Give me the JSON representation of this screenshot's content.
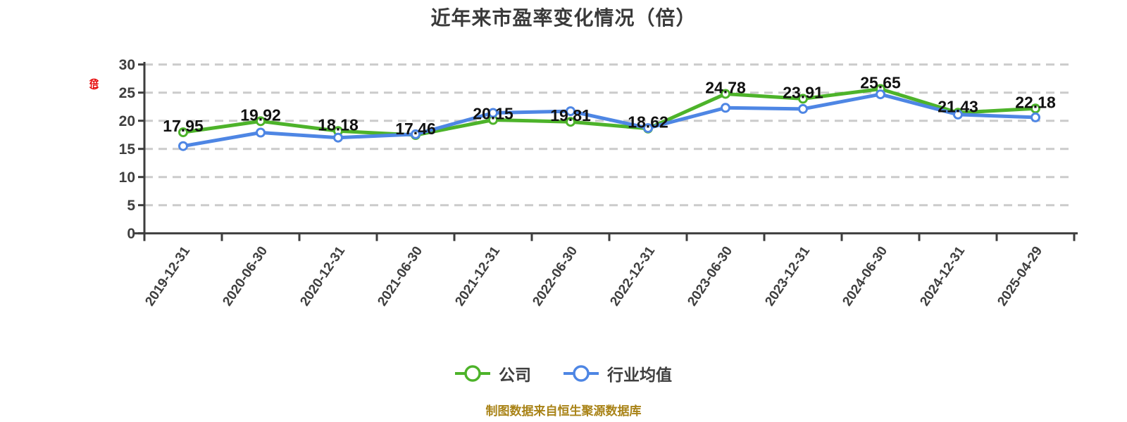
{
  "page": {
    "title": "近年来市盈率变化情况（倍）",
    "y_axis_unit": "（倍）",
    "footer_note": "制图数据来自恒生聚源数据库"
  },
  "colors": {
    "company_line": "#4db32a",
    "industry_line": "#4e86e4",
    "grid_line": "#cbcbcb",
    "axis_line": "#3d3d3d",
    "tick_label": "#3e3e3e",
    "data_label": "#111111",
    "title_text": "#3a3a3a",
    "unit_label_red": "#e60505",
    "footer_text": "#a98317",
    "background": "#ffffff",
    "marker_fill": "#ffffff"
  },
  "chart_data": {
    "type": "line",
    "title": "近年来市盈率变化情况（倍）",
    "ylabel": "（倍）",
    "xlabel": "",
    "categories": [
      "2019-12-31",
      "2020-06-30",
      "2020-12-31",
      "2021-06-30",
      "2021-12-31",
      "2022-06-30",
      "2022-12-31",
      "2023-06-30",
      "2023-12-31",
      "2024-06-30",
      "2024-12-31",
      "2025-04-29"
    ],
    "series": [
      {
        "name": "公司",
        "color": "#4db32a",
        "values": [
          17.95,
          19.92,
          18.18,
          17.46,
          20.15,
          19.81,
          18.62,
          24.78,
          23.91,
          25.65,
          21.43,
          22.18
        ],
        "data_labels_visible": true
      },
      {
        "name": "行业均值",
        "color": "#4e86e4",
        "values": [
          15.5,
          17.9,
          17.0,
          17.6,
          21.4,
          21.7,
          18.7,
          22.3,
          22.1,
          24.7,
          21.1,
          20.6
        ],
        "data_labels_visible": false
      }
    ],
    "ylim": [
      0,
      30
    ],
    "yticks": [
      0,
      5,
      10,
      15,
      20,
      25,
      30
    ],
    "grid": "horizontal-dashed",
    "legend_position": "bottom",
    "marker": "circle-white-fill"
  }
}
